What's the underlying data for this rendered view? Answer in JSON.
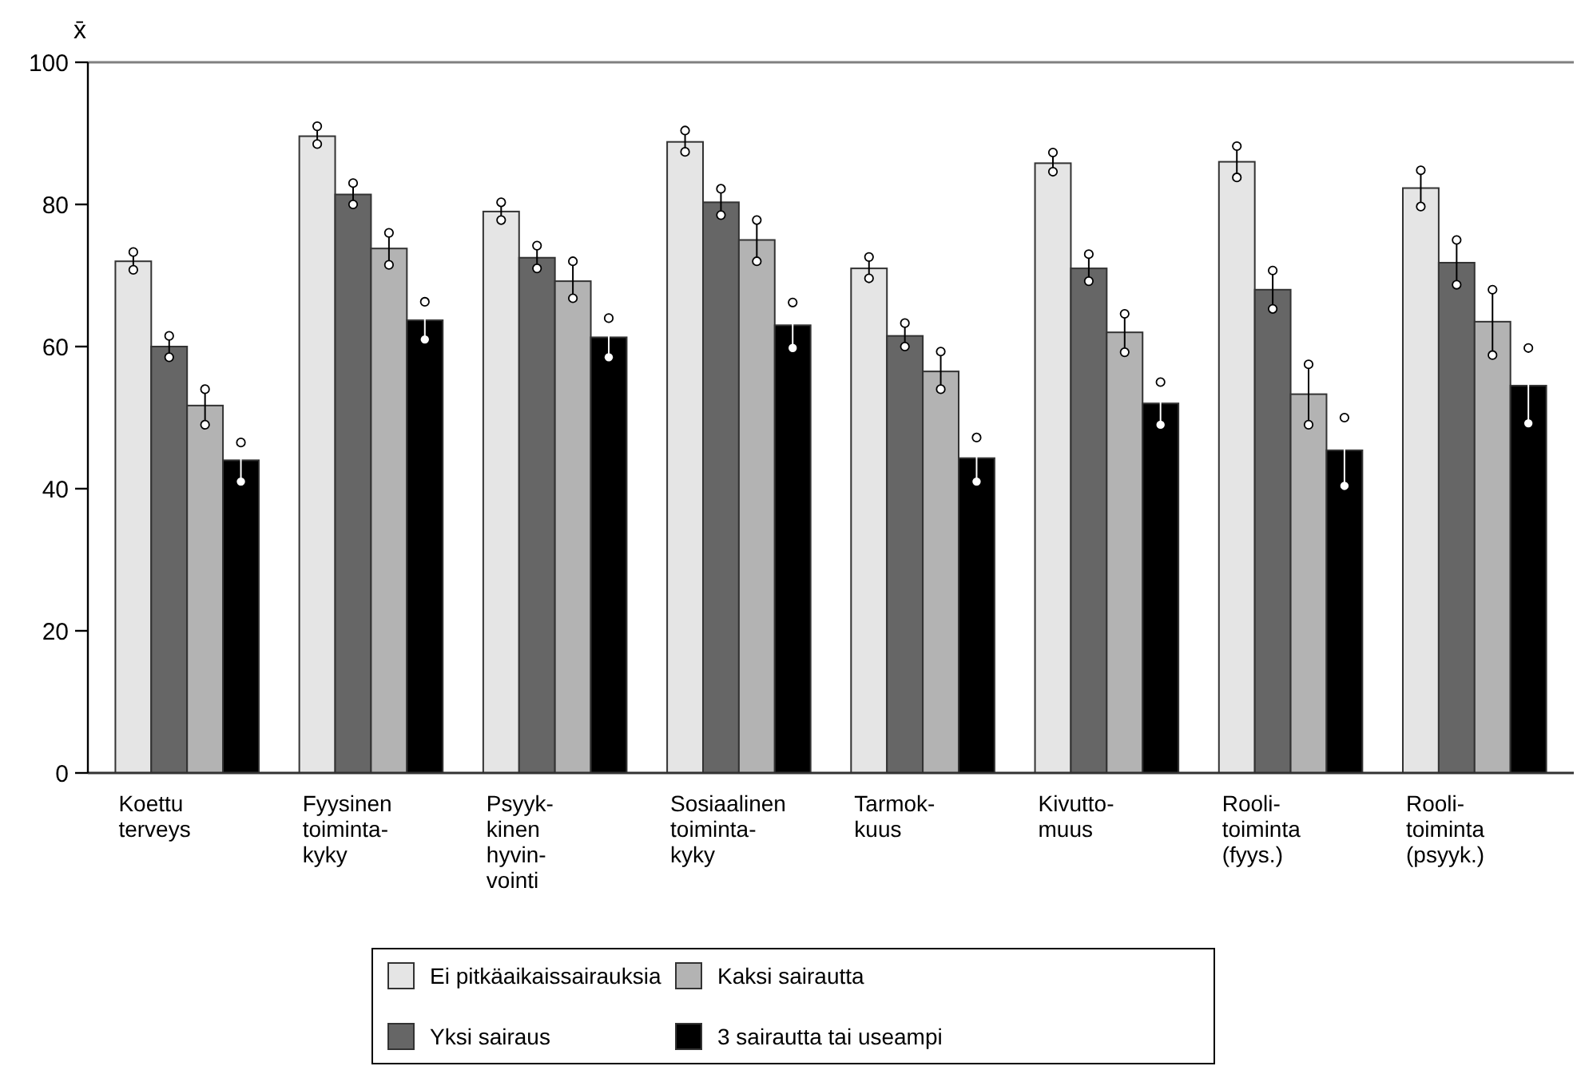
{
  "chart_data": {
    "type": "bar",
    "ylabel": "x̄",
    "categories": [
      "Koettu\nterveys",
      "Fyysinen\ntoiminta-\nkyky",
      "Psyyk-\nkinen\nhyvin-\nvointi",
      "Sosiaalinen\ntoiminta-\nkyky",
      "Tarmok-\nkuus",
      "Kivutto-\nmuus",
      "Rooli-\ntoiminta\n(fyys.)",
      "Rooli-\ntoiminta\n(psyyk.)"
    ],
    "series": [
      {
        "name": "Ei pitkäaikaissairauksia",
        "color": "#e5e5e5",
        "values": [
          72,
          89.6,
          79,
          88.8,
          71,
          85.8,
          86,
          82.3
        ],
        "errors": [
          [
            70.8,
            73.3
          ],
          [
            88.5,
            91
          ],
          [
            77.8,
            80.3
          ],
          [
            87.4,
            90.4
          ],
          [
            69.6,
            72.6
          ],
          [
            84.6,
            87.3
          ],
          [
            83.8,
            88.2
          ],
          [
            79.7,
            84.8
          ]
        ]
      },
      {
        "name": "Yksi sairaus",
        "color": "#666666",
        "values": [
          60,
          81.4,
          72.5,
          80.3,
          61.5,
          71,
          68,
          71.8
        ],
        "errors": [
          [
            58.5,
            61.5
          ],
          [
            80,
            83
          ],
          [
            71,
            74.2
          ],
          [
            78.5,
            82.2
          ],
          [
            60,
            63.3
          ],
          [
            69.2,
            73
          ],
          [
            65.3,
            70.7
          ],
          [
            68.7,
            75
          ]
        ]
      },
      {
        "name": "Kaksi sairautta",
        "color": "#b3b3b3",
        "values": [
          51.7,
          73.8,
          69.2,
          75,
          56.5,
          62,
          53.3,
          63.5
        ],
        "errors": [
          [
            49,
            54
          ],
          [
            71.5,
            76
          ],
          [
            66.8,
            72
          ],
          [
            72,
            77.8
          ],
          [
            54,
            59.3
          ],
          [
            59.2,
            64.6
          ],
          [
            49,
            57.5
          ],
          [
            58.8,
            68
          ]
        ]
      },
      {
        "name": "3 sairautta tai useampi",
        "color": "#000000",
        "values": [
          44,
          63.7,
          61.3,
          63,
          44.3,
          52,
          45.4,
          54.5
        ],
        "errors": [
          [
            41,
            46.5
          ],
          [
            61,
            66.3
          ],
          [
            58.5,
            64
          ],
          [
            59.8,
            66.2
          ],
          [
            41,
            47.2
          ],
          [
            49,
            55
          ],
          [
            40.4,
            50
          ],
          [
            49.2,
            59.8
          ]
        ]
      }
    ],
    "ylim": [
      0,
      100
    ],
    "yticks": [
      0,
      20,
      40,
      60,
      80,
      100
    ],
    "legend": "bottom"
  }
}
